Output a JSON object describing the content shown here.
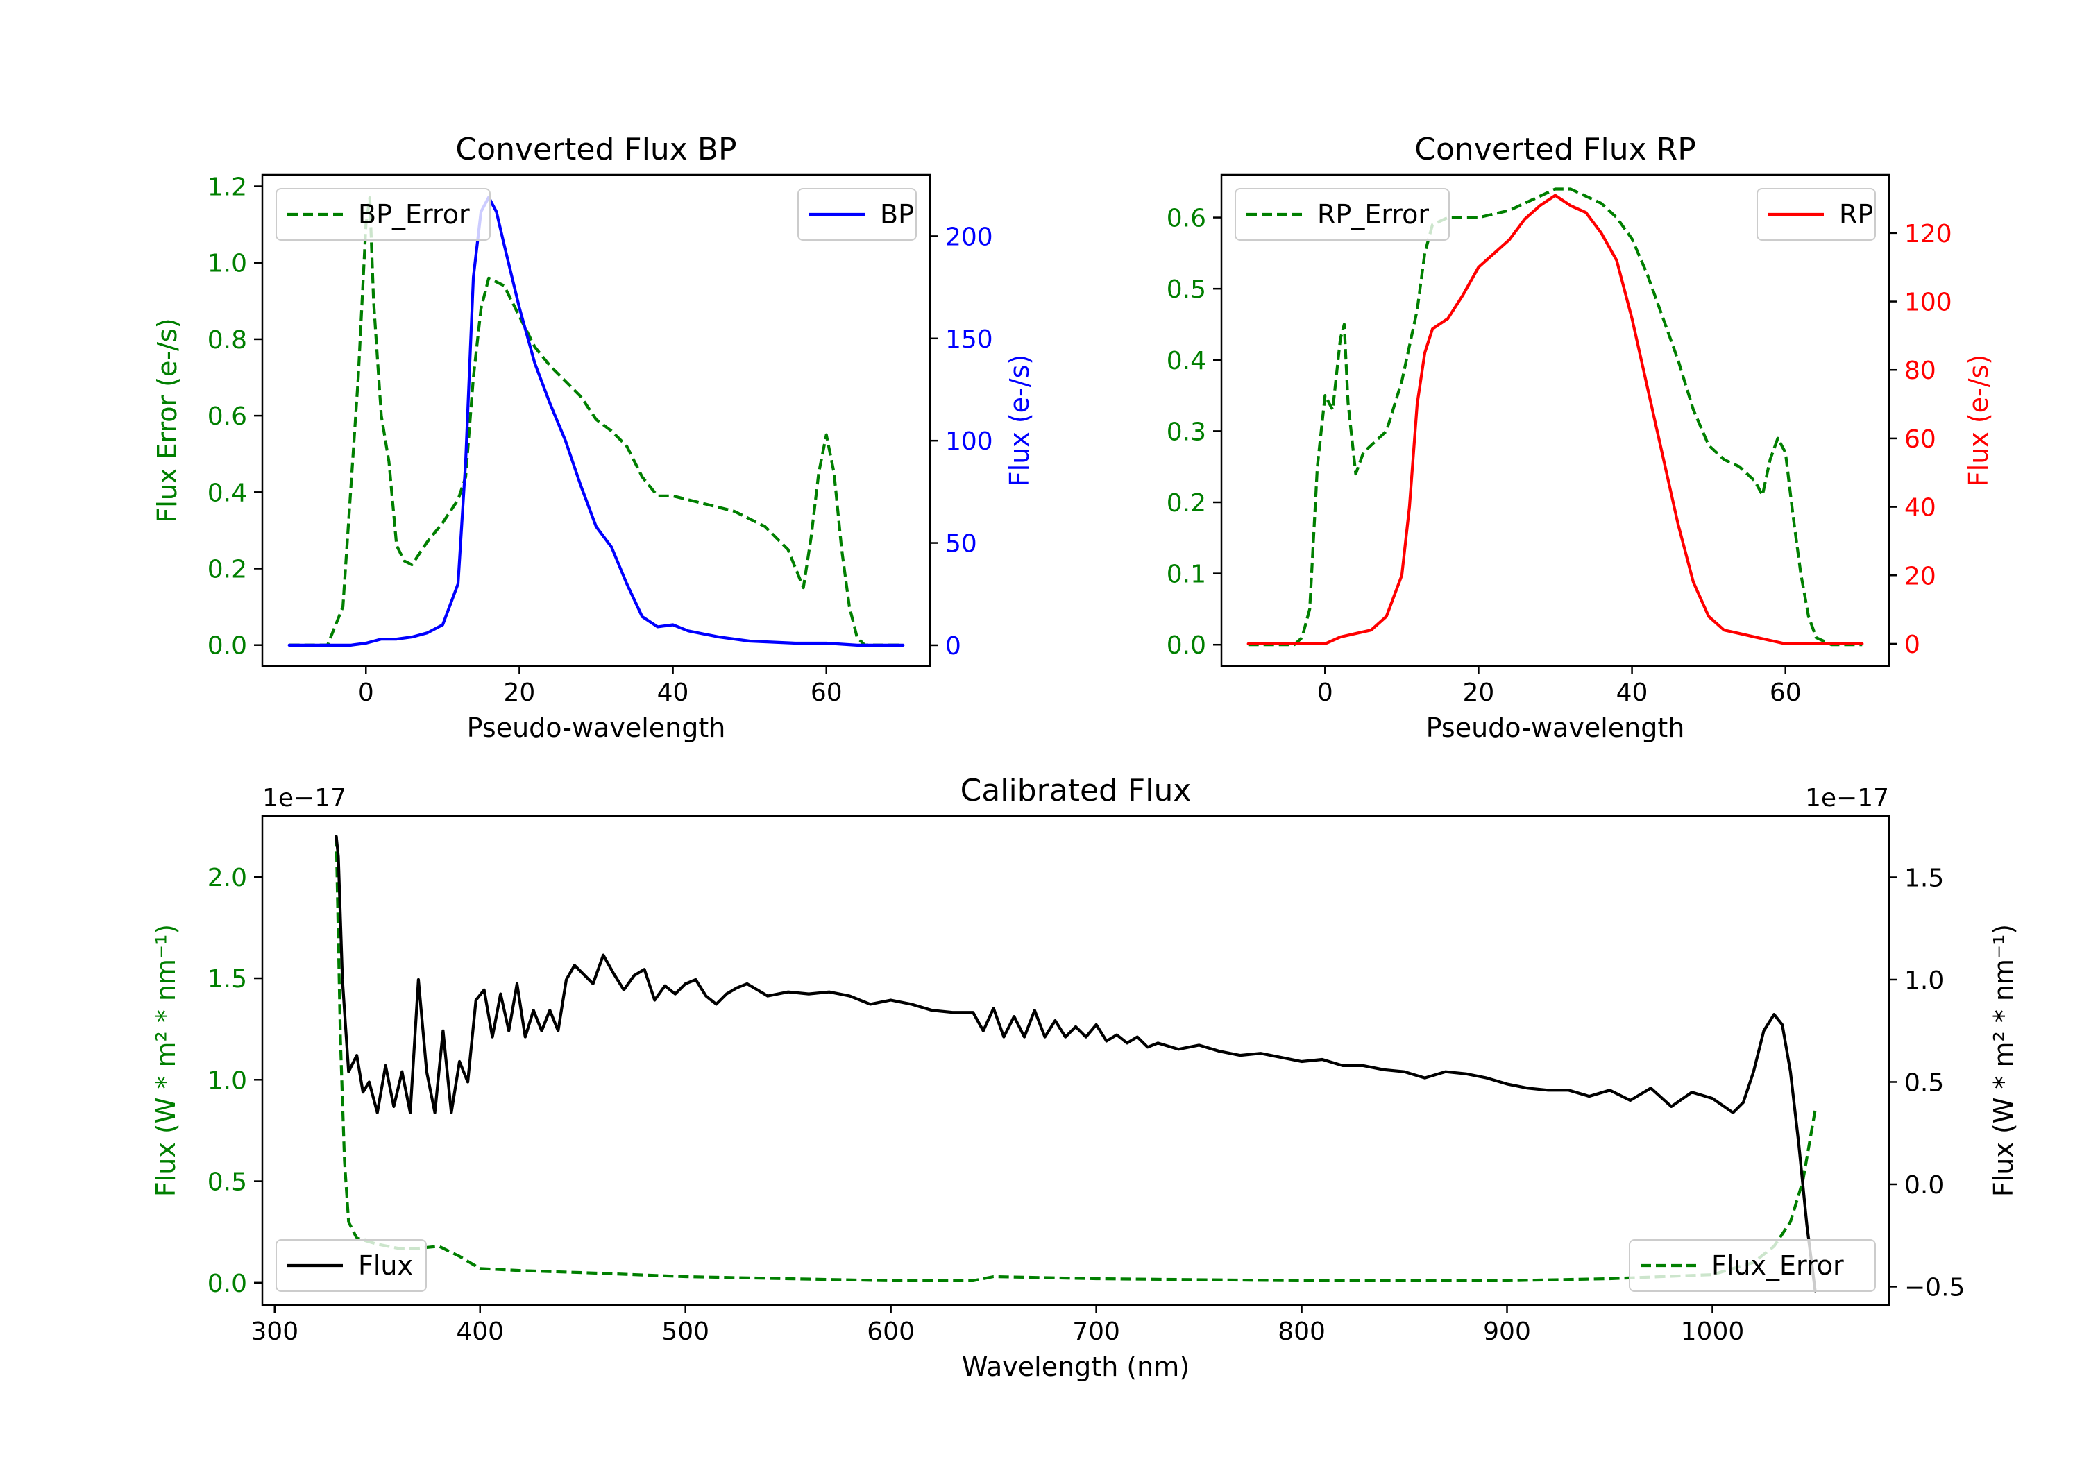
{
  "colors": {
    "error": "#007f00",
    "bp": "#0000ff",
    "rp": "#ff0000",
    "flux": "#000000",
    "axis": "#000000"
  },
  "chart_data": [
    {
      "type": "line",
      "title": "Converted Flux BP",
      "xlabel": "Pseudo-wavelength",
      "ylabel_left": "Flux Error (e-/s)",
      "ylabel_right": "Flux (e-/s)",
      "xlim": [
        -13.5,
        73.5
      ],
      "ylim_left": [
        -0.055,
        1.23
      ],
      "ylim_right": [
        -10.2,
        230
      ],
      "xticks": [
        0,
        20,
        40,
        60
      ],
      "yticks_left": [
        "0.0",
        "0.2",
        "0.4",
        "0.6",
        "0.8",
        "1.0",
        "1.2"
      ],
      "yticks_right": [
        "0",
        "50",
        "100",
        "150",
        "200"
      ],
      "legend_left": {
        "label": "BP_Error",
        "loc": "upper left"
      },
      "legend_right": {
        "label": "BP",
        "loc": "upper right"
      },
      "series": [
        {
          "name": "BP_Error",
          "axis": "left",
          "style": "dashed",
          "color": "#007f00",
          "x": [
            -10,
            -5,
            -3,
            -1,
            0,
            0.5,
            1,
            2,
            3,
            4,
            5,
            6,
            8,
            10,
            12,
            13,
            14,
            15,
            16,
            18,
            20,
            22,
            24,
            26,
            28,
            30,
            32,
            34,
            36,
            38,
            40,
            44,
            48,
            52,
            55,
            56,
            57,
            58,
            59,
            60,
            61,
            62,
            63,
            64,
            65,
            66,
            70
          ],
          "y": [
            0,
            0,
            0.1,
            0.7,
            1.1,
            1.17,
            0.9,
            0.6,
            0.48,
            0.26,
            0.22,
            0.21,
            0.27,
            0.32,
            0.38,
            0.44,
            0.7,
            0.88,
            0.96,
            0.94,
            0.86,
            0.78,
            0.73,
            0.69,
            0.65,
            0.59,
            0.56,
            0.52,
            0.44,
            0.39,
            0.39,
            0.37,
            0.35,
            0.31,
            0.25,
            0.2,
            0.15,
            0.28,
            0.45,
            0.55,
            0.45,
            0.25,
            0.1,
            0.02,
            0,
            0,
            0
          ]
        },
        {
          "name": "BP",
          "axis": "right",
          "style": "solid",
          "color": "#0000ff",
          "x": [
            -10,
            -2,
            0,
            2,
            4,
            6,
            8,
            10,
            12,
            13,
            14,
            15,
            16,
            17,
            18,
            20,
            22,
            24,
            26,
            28,
            30,
            32,
            34,
            36,
            38,
            40,
            42,
            46,
            50,
            56,
            60,
            64,
            70
          ],
          "y": [
            0,
            0,
            1,
            3,
            3,
            4,
            6,
            10,
            30,
            90,
            180,
            212,
            219,
            212,
            196,
            165,
            138,
            118,
            100,
            78,
            58,
            48,
            30,
            14,
            9,
            10,
            7,
            4,
            2,
            1,
            1,
            0,
            0
          ]
        }
      ]
    },
    {
      "type": "line",
      "title": "Converted Flux RP",
      "xlabel": "Pseudo-wavelength",
      "ylabel_left": "Flux Error (e-/s)",
      "ylabel_right": "Flux (e-/s)",
      "xlim": [
        -13.5,
        73.5
      ],
      "ylim_left": [
        -0.03,
        0.66
      ],
      "ylim_right": [
        -6.5,
        137
      ],
      "xticks": [
        0,
        20,
        40,
        60
      ],
      "yticks_left": [
        "0.0",
        "0.1",
        "0.2",
        "0.3",
        "0.4",
        "0.5",
        "0.6"
      ],
      "yticks_right": [
        "0",
        "20",
        "40",
        "60",
        "80",
        "100",
        "120"
      ],
      "legend_left": {
        "label": "RP_Error",
        "loc": "upper left"
      },
      "legend_right": {
        "label": "RP",
        "loc": "upper right"
      },
      "series": [
        {
          "name": "RP_Error",
          "axis": "left",
          "style": "dashed",
          "color": "#007f00",
          "x": [
            -10,
            -4,
            -3,
            -2,
            -1,
            0,
            1,
            2,
            2.5,
            3,
            4,
            5,
            6,
            8,
            10,
            12,
            13,
            14,
            16,
            18,
            20,
            24,
            28,
            30,
            32,
            34,
            36,
            38,
            40,
            42,
            44,
            46,
            48,
            50,
            52,
            54,
            56,
            57,
            58,
            59,
            60,
            61,
            62,
            63,
            64,
            66,
            70
          ],
          "y": [
            0,
            0,
            0.01,
            0.05,
            0.25,
            0.35,
            0.33,
            0.43,
            0.45,
            0.34,
            0.24,
            0.27,
            0.28,
            0.3,
            0.37,
            0.47,
            0.55,
            0.59,
            0.6,
            0.6,
            0.6,
            0.61,
            0.63,
            0.64,
            0.64,
            0.63,
            0.62,
            0.6,
            0.57,
            0.52,
            0.46,
            0.4,
            0.33,
            0.28,
            0.26,
            0.25,
            0.23,
            0.21,
            0.26,
            0.29,
            0.27,
            0.18,
            0.1,
            0.04,
            0.01,
            0,
            0
          ]
        },
        {
          "name": "RP",
          "axis": "right",
          "style": "solid",
          "color": "#ff0000",
          "x": [
            -10,
            -2,
            0,
            2,
            4,
            6,
            8,
            10,
            11,
            12,
            13,
            14,
            16,
            18,
            20,
            22,
            24,
            26,
            28,
            30,
            32,
            34,
            36,
            38,
            40,
            42,
            44,
            46,
            48,
            50,
            52,
            54,
            56,
            58,
            60,
            64,
            70
          ],
          "y": [
            0,
            0,
            0,
            2,
            3,
            4,
            8,
            20,
            40,
            70,
            85,
            92,
            95,
            102,
            110,
            114,
            118,
            124,
            128,
            131,
            128,
            126,
            120,
            112,
            95,
            75,
            55,
            35,
            18,
            8,
            4,
            3,
            2,
            1,
            0,
            0,
            0
          ]
        }
      ]
    },
    {
      "type": "line",
      "title": "Calibrated Flux",
      "xlabel": "Wavelength (nm)",
      "ylabel_left": "Flux (W * m² * nm⁻¹)",
      "ylabel_right": "Flux (W * m² * nm⁻¹)",
      "offset_left": "1e−17",
      "offset_right": "1e−17",
      "xlim": [
        294,
        1086
      ],
      "ylim_left": [
        -0.11,
        2.3
      ],
      "ylim_right": [
        -0.59,
        1.8
      ],
      "xticks": [
        300,
        400,
        500,
        600,
        700,
        800,
        900,
        1000
      ],
      "yticks_left": [
        "0.0",
        "0.5",
        "1.0",
        "1.5",
        "2.0"
      ],
      "yticks_right": [
        "−0.5",
        "0.0",
        "0.5",
        "1.0",
        "1.5"
      ],
      "legend_left": {
        "label": "Flux",
        "loc": "lower left"
      },
      "legend_right": {
        "label": "Flux_Error",
        "loc": "lower right"
      },
      "series": [
        {
          "name": "Flux_Error",
          "axis": "left",
          "style": "dashed",
          "color": "#007f00",
          "x": [
            330,
            332,
            334,
            336,
            340,
            350,
            360,
            370,
            380,
            390,
            400,
            420,
            450,
            500,
            550,
            600,
            640,
            650,
            700,
            800,
            900,
            950,
            1000,
            1020,
            1030,
            1038,
            1044,
            1050
          ],
          "y": [
            2.2,
            1.2,
            0.6,
            0.3,
            0.22,
            0.19,
            0.17,
            0.17,
            0.18,
            0.13,
            0.07,
            0.06,
            0.05,
            0.03,
            0.02,
            0.01,
            0.01,
            0.03,
            0.02,
            0.01,
            0.01,
            0.02,
            0.04,
            0.1,
            0.18,
            0.3,
            0.5,
            0.85
          ]
        },
        {
          "name": "Flux",
          "axis": "right",
          "style": "solid",
          "color": "#000000",
          "x": [
            330,
            331,
            333,
            336,
            340,
            343,
            346,
            350,
            354,
            358,
            362,
            366,
            370,
            374,
            378,
            382,
            386,
            390,
            394,
            398,
            402,
            406,
            410,
            414,
            418,
            422,
            426,
            430,
            434,
            438,
            442,
            446,
            450,
            455,
            460,
            465,
            470,
            475,
            480,
            485,
            490,
            495,
            500,
            505,
            510,
            515,
            520,
            525,
            530,
            535,
            540,
            550,
            560,
            570,
            580,
            590,
            600,
            610,
            620,
            630,
            640,
            645,
            650,
            655,
            660,
            665,
            670,
            675,
            680,
            685,
            690,
            695,
            700,
            705,
            710,
            715,
            720,
            725,
            730,
            740,
            750,
            760,
            770,
            780,
            790,
            800,
            810,
            820,
            830,
            840,
            850,
            860,
            870,
            880,
            890,
            900,
            910,
            920,
            930,
            940,
            950,
            960,
            970,
            980,
            990,
            1000,
            1010,
            1015,
            1020,
            1025,
            1030,
            1034,
            1038,
            1042,
            1046,
            1050
          ],
          "y": [
            1.7,
            1.6,
            1.0,
            0.55,
            0.63,
            0.45,
            0.5,
            0.35,
            0.58,
            0.38,
            0.55,
            0.35,
            1.0,
            0.55,
            0.35,
            0.75,
            0.35,
            0.6,
            0.5,
            0.9,
            0.95,
            0.72,
            0.93,
            0.75,
            0.98,
            0.72,
            0.85,
            0.75,
            0.85,
            0.75,
            1.0,
            1.07,
            1.03,
            0.98,
            1.12,
            1.03,
            0.95,
            1.02,
            1.05,
            0.9,
            0.97,
            0.93,
            0.98,
            1.0,
            0.92,
            0.88,
            0.93,
            0.96,
            0.98,
            0.95,
            0.92,
            0.94,
            0.93,
            0.94,
            0.92,
            0.88,
            0.9,
            0.88,
            0.85,
            0.84,
            0.84,
            0.75,
            0.86,
            0.72,
            0.82,
            0.72,
            0.85,
            0.72,
            0.8,
            0.72,
            0.77,
            0.72,
            0.78,
            0.7,
            0.73,
            0.69,
            0.72,
            0.67,
            0.69,
            0.66,
            0.68,
            0.65,
            0.63,
            0.64,
            0.62,
            0.6,
            0.61,
            0.58,
            0.58,
            0.56,
            0.55,
            0.52,
            0.55,
            0.54,
            0.52,
            0.49,
            0.47,
            0.46,
            0.46,
            0.43,
            0.46,
            0.41,
            0.47,
            0.38,
            0.45,
            0.42,
            0.35,
            0.4,
            0.55,
            0.75,
            0.83,
            0.78,
            0.55,
            0.2,
            -0.2,
            -0.52
          ]
        }
      ]
    }
  ]
}
